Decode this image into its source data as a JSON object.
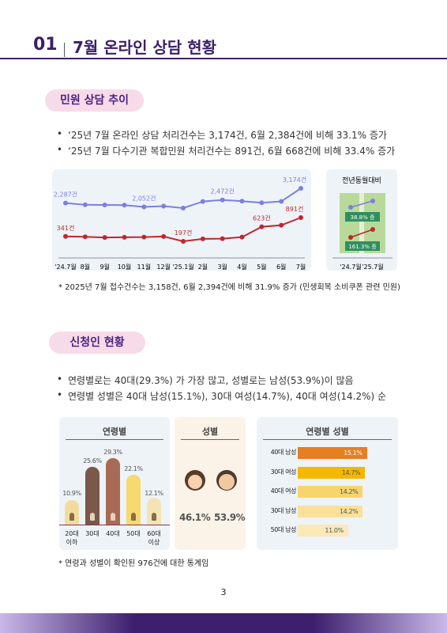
{
  "header": {
    "number": "01",
    "title": "7월 온라인 상담 현황"
  },
  "section1": {
    "heading": "민원 상담 추이",
    "bullets": [
      "‘25년 7월 온라인 상담 처리건수는 3,174건, 6월 2,384건에 비해 33.1% 증가",
      "‘25년 7월 다수기관 복합민원 처리건수는 891건, 6월 668건에 비해 33.4% 증가"
    ],
    "line_chart": {
      "type": "line",
      "categories": [
        "'24.7월",
        "8월",
        "9월",
        "10월",
        "11월",
        "12월",
        "'25.1월",
        "2월",
        "3월",
        "4월",
        "5월",
        "6월",
        "7월"
      ],
      "series": [
        {
          "color": "#7b7fe0",
          "values": [
            2287,
            2180,
            2170,
            2160,
            2052,
            2100,
            1980,
            2380,
            2472,
            2400,
            2300,
            2384,
            3174
          ],
          "value_labels": [
            "2,287건",
            null,
            null,
            null,
            "2,052건",
            null,
            null,
            null,
            "2,472건",
            null,
            null,
            null,
            "3,174건"
          ]
        },
        {
          "color": "#c0262d",
          "values": [
            341,
            330,
            310,
            315,
            320,
            340,
            197,
            270,
            275,
            320,
            623,
            668,
            891
          ],
          "value_labels": [
            "341건",
            null,
            null,
            null,
            null,
            null,
            "197건",
            null,
            null,
            null,
            "623건",
            null,
            "891건"
          ]
        }
      ]
    },
    "yoy": {
      "title": "전년동월대비",
      "categories": [
        "'24.7월",
        "'25.7월"
      ],
      "blue": [
        2287,
        3174
      ],
      "red": [
        341,
        891
      ],
      "blue_label": "38.8% 증",
      "red_label": "161.3% 증"
    },
    "note": "* 2025년 7월 접수건수는 3,158건, 6월 2,394건에 비해 31.9% 증가 (민생회복 소비쿠폰 관련 민원)"
  },
  "section2": {
    "heading": "신청인 현황",
    "bullets": [
      "연령별로는 40대(29.3%) 가 가장 많고, 성별로는 남성(53.9%)이 많음",
      "연령별 성별은 40대 남성(15.1%), 30대 여성(14.7%), 40대 여성(14.2%) 순"
    ],
    "age_chart": {
      "type": "bar",
      "title": "연령별",
      "categories": [
        "20대 이하",
        "30대",
        "40대",
        "50대",
        "60대 이상"
      ],
      "values": [
        10.9,
        25.6,
        29.3,
        22.1,
        12.1
      ],
      "value_labels": [
        "10.9%",
        "25.6%",
        "29.3%",
        "22.1%",
        "12.1%"
      ],
      "colors": [
        "#f1dc9e",
        "#7a584a",
        "#a96a55",
        "#f6d96f",
        "#f3e4b2"
      ]
    },
    "gender_chart": {
      "title": "성별",
      "values": [
        46.1,
        53.9
      ],
      "value_labels": [
        "46.1%",
        "53.9%"
      ]
    },
    "combo_chart": {
      "type": "bar",
      "title": "연령별 성별",
      "categories": [
        "40대 남성",
        "30대 여성",
        "40대 여성",
        "30대 남성",
        "50대 남성"
      ],
      "values": [
        15.1,
        14.7,
        14.2,
        14.2,
        11.0
      ],
      "value_labels": [
        "15.1%",
        "14.7%",
        "14.2%",
        "14.2%",
        "11.0%"
      ],
      "colors": [
        "#e67e22",
        "#f5b800",
        "#f8d46c",
        "#fae09b",
        "#fbe9b8"
      ]
    },
    "note": "* 연령과 성별이 확인된 976건에 대한 통계임"
  },
  "page_number": "3"
}
